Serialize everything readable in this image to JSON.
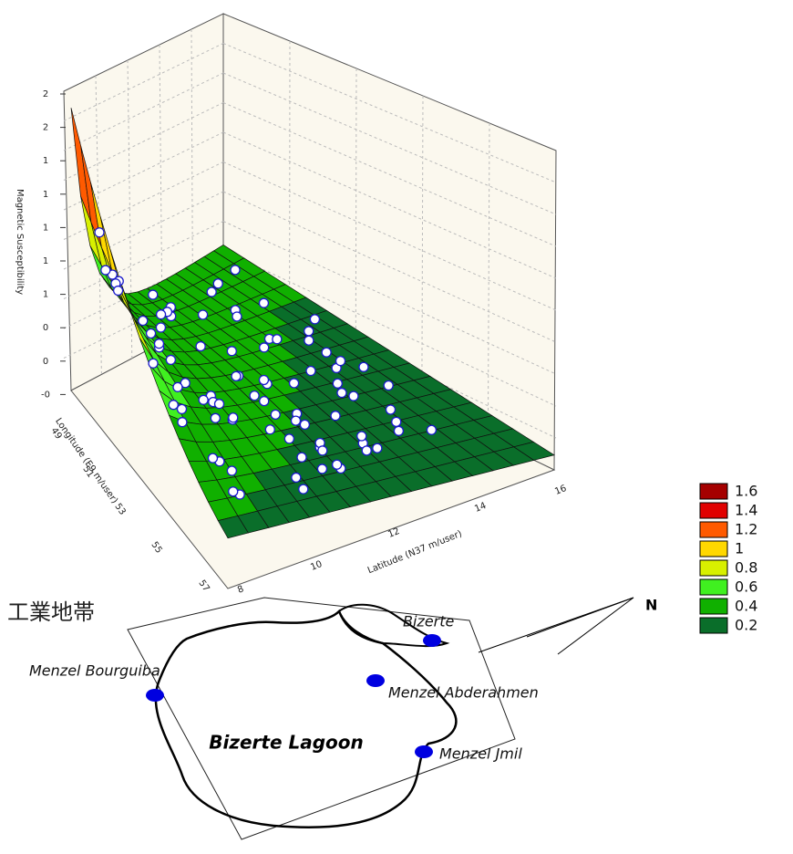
{
  "surface_plot": {
    "z_axis": {
      "label": "Magnetic Susceptibility",
      "ticks": [
        "2",
        "2",
        "1",
        "1",
        "1",
        "1",
        "1",
        "0",
        "0",
        "-0"
      ]
    },
    "y_axis": {
      "label": "Longitude (E9 m/user)",
      "ticks": [
        "49",
        "51",
        "53",
        "55",
        "57"
      ]
    },
    "x_axis": {
      "label": "Latitude (N37 m/user)",
      "ticks": [
        "8",
        "10",
        "12",
        "14",
        "16"
      ]
    },
    "legend": [
      {
        "value": 1.6,
        "color": "#a50000"
      },
      {
        "value": 1.4,
        "color": "#e00000"
      },
      {
        "value": 1.2,
        "color": "#ff5a00"
      },
      {
        "value": 1,
        "color": "#ffd800"
      },
      {
        "value": 0.8,
        "color": "#d8f000"
      },
      {
        "value": 0.6,
        "color": "#40f020"
      },
      {
        "value": 0.4,
        "color": "#10b000"
      },
      {
        "value": 0.2,
        "color": "#0a6e2a"
      }
    ]
  },
  "map": {
    "region_label": "工業地帯",
    "lagoon": "Bizerte Lagoon",
    "places": [
      "Bizerte",
      "Menzel Bourguiba",
      "Menzel Abderahmen",
      "Menzel Jmil"
    ],
    "north": "N"
  }
}
